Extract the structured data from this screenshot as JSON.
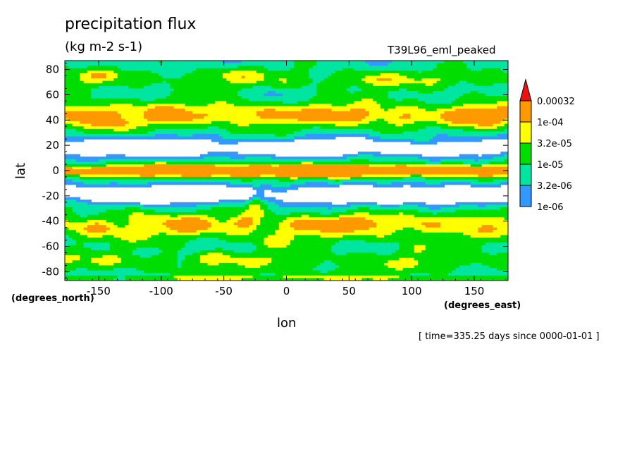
{
  "title": "precipitation flux",
  "units": "(kg m-2 s-1)",
  "experiment": "T39L96_eml_peaked",
  "time_label": "[ time=335.25 days since 0000-01-01 ]",
  "colors": {
    "below": "#ffffff",
    "level_1": "#3399ff",
    "level_2": "#00e5a0",
    "level_3": "#00dd00",
    "level_4": "#ffff00",
    "level_5": "#ff9900",
    "above": "#ee1111"
  },
  "chart_data": {
    "type": "heatmap",
    "title": "precipitation flux",
    "subtitle": "(kg m-2 s-1)",
    "xlabel": "lon",
    "ylabel": "lat",
    "x_units": "(degrees_east)",
    "y_units": "(degrees_north)",
    "xlim": [
      -177,
      177
    ],
    "ylim": [
      -87,
      87
    ],
    "x_ticks": [
      -150,
      -100,
      -50,
      0,
      50,
      100,
      150
    ],
    "x_tick_labels": [
      "-150",
      "-100",
      "-50",
      "0",
      "50",
      "100",
      "150"
    ],
    "y_ticks": [
      80,
      60,
      40,
      20,
      0,
      -20,
      -40,
      -60,
      -80
    ],
    "y_tick_labels": [
      "80",
      "60",
      "40",
      "20",
      "0",
      "-20",
      "-40",
      "-60",
      "-80"
    ],
    "colorbar": {
      "levels": [
        "1e-06",
        "3.2e-06",
        "1e-05",
        "3.2e-05",
        "1e-04",
        "0.00032"
      ],
      "colors": [
        "#3399ff",
        "#00e5a0",
        "#00dd00",
        "#ffff00",
        "#ff9900"
      ],
      "extend": "max"
    },
    "levels_numeric": [
      1e-06,
      3.2e-06,
      1e-05,
      3.2e-05,
      0.0001,
      0.00032
    ],
    "lat_band_means": [
      {
        "lat": 85,
        "value": 1e-05
      },
      {
        "lat": 75,
        "value": 1.5e-05
      },
      {
        "lat": 65,
        "value": 8e-06
      },
      {
        "lat": 55,
        "value": 1.2e-05
      },
      {
        "lat": 45,
        "value": 4e-05
      },
      {
        "lat": 35,
        "value": 3e-05
      },
      {
        "lat": 25,
        "value": 8e-06
      },
      {
        "lat": 15,
        "value": 3e-06
      },
      {
        "lat": 8,
        "value": 2e-05
      },
      {
        "lat": 0,
        "value": 0.00015
      },
      {
        "lat": -8,
        "value": 2e-05
      },
      {
        "lat": -15,
        "value": 3e-06
      },
      {
        "lat": -25,
        "value": 4e-06
      },
      {
        "lat": -35,
        "value": 3e-05
      },
      {
        "lat": -45,
        "value": 4e-05
      },
      {
        "lat": -55,
        "value": 1.2e-05
      },
      {
        "lat": -65,
        "value": 8e-06
      },
      {
        "lat": -75,
        "value": 1e-05
      },
      {
        "lat": -85,
        "value": 2e-05
      }
    ]
  }
}
